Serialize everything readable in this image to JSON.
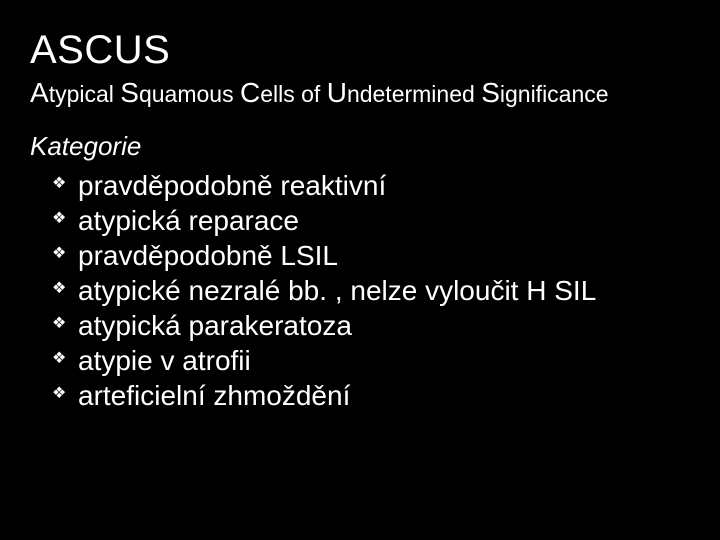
{
  "title": "ASCUS",
  "subtitle": {
    "w1_cap": "A",
    "w1_rest": "typical ",
    "w2_cap": "S",
    "w2_rest": "quamous ",
    "w3_cap": "C",
    "w3_rest": "ells of ",
    "w4_cap": "U",
    "w4_rest": "ndetermined ",
    "w5_cap": "S",
    "w5_rest": "ignificance"
  },
  "category_label": "Kategorie",
  "items": [
    "pravděpodobně reaktivní",
    "atypická reparace",
    "pravděpodobně LSIL",
    "atypické nezralé bb. , nelze vyloučit H SIL",
    "atypická parakeratoza",
    "atypie v atrofii",
    "arteficielní zhmoždění"
  ],
  "colors": {
    "bg": "#000000",
    "text": "#ffffff"
  },
  "fonts": {
    "title_size": 40,
    "subtitle_size": 23,
    "subtitle_cap_size": 28,
    "category_size": 26,
    "item_size": 28
  }
}
